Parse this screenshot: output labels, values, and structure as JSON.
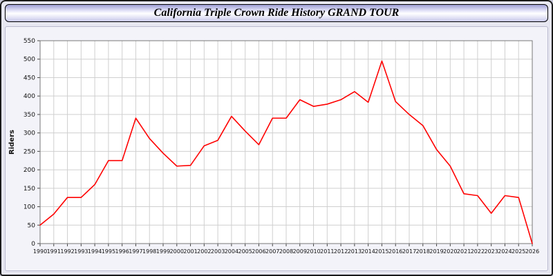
{
  "header": {
    "title": "California Triple Crown Ride History GRAND TOUR"
  },
  "chart_data": {
    "type": "line",
    "title": "California Triple Crown Ride History GRAND TOUR",
    "xlabel": "",
    "ylabel": "Riders",
    "x": [
      1990,
      1991,
      1992,
      1993,
      1994,
      1995,
      1996,
      1997,
      1998,
      1999,
      2000,
      2001,
      2002,
      2003,
      2004,
      2005,
      2006,
      2007,
      2008,
      2009,
      2010,
      2011,
      2012,
      2013,
      2014,
      2015,
      2016,
      2017,
      2018,
      2019,
      2020,
      2021,
      2022,
      2023,
      2024,
      2025,
      2026
    ],
    "values": [
      50,
      80,
      125,
      125,
      160,
      225,
      225,
      340,
      285,
      245,
      210,
      212,
      265,
      280,
      345,
      305,
      268,
      340,
      340,
      390,
      372,
      378,
      390,
      412,
      383,
      495,
      385,
      350,
      320,
      255,
      210,
      135,
      130,
      82,
      130,
      125,
      0
    ],
    "ylim": [
      0,
      550
    ],
    "ytick_step": 50,
    "grid": true,
    "legend": "none",
    "line_color": "#ff0000",
    "plot_bg": "#ffffff",
    "grid_color": "#cfcfcf",
    "axis_color": "#777777",
    "tick_text_color": "#111111"
  }
}
